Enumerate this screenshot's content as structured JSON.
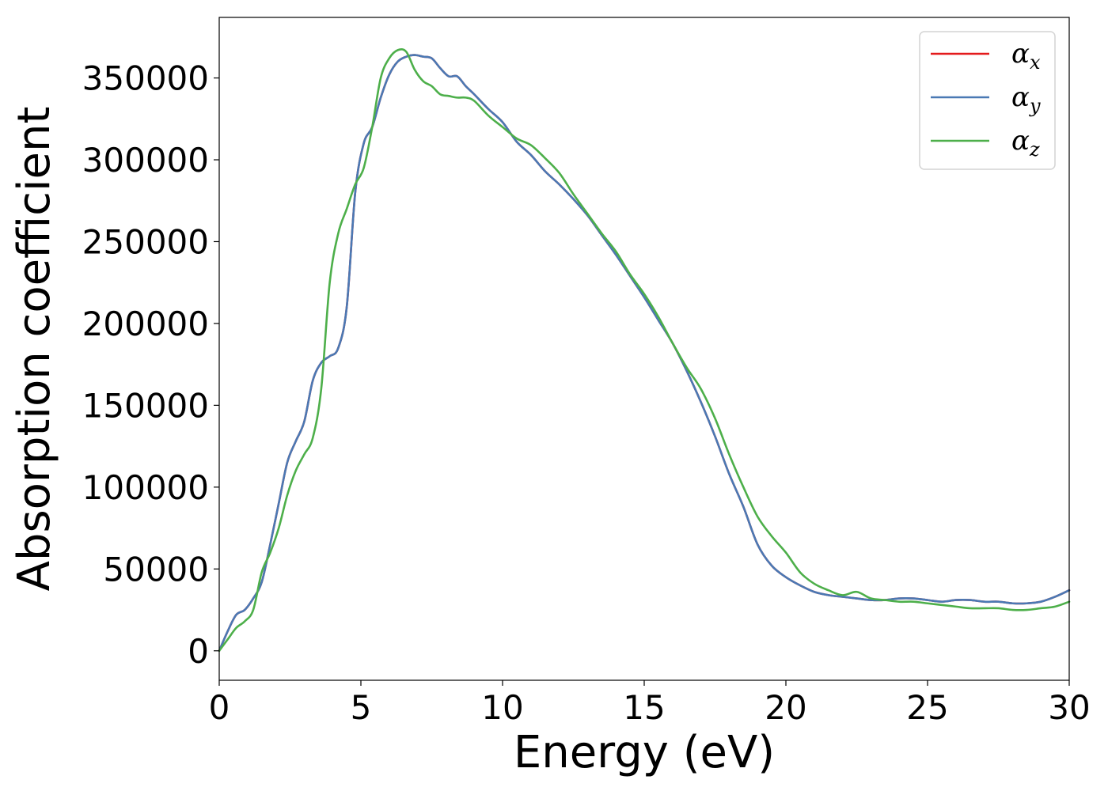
{
  "chart_data": {
    "type": "line",
    "title": "",
    "xlabel": "Energy (eV)",
    "ylabel": "Absorption coefficient",
    "xlim": [
      0,
      30
    ],
    "ylim": [
      -18000,
      387000
    ],
    "xticks": [
      0,
      5,
      10,
      15,
      20,
      25,
      30
    ],
    "xtick_labels": [
      "0",
      "5",
      "10",
      "15",
      "20",
      "25",
      "30"
    ],
    "yticks": [
      0,
      50000,
      100000,
      150000,
      200000,
      250000,
      300000,
      350000
    ],
    "ytick_labels": [
      "0",
      "50000",
      "100000",
      "150000",
      "200000",
      "250000",
      "300000",
      "350000"
    ],
    "grid": false,
    "legend_position": "top-right",
    "series": [
      {
        "name": "α",
        "subscript": "x",
        "color": "#e41a1c",
        "x": [
          0,
          0.3,
          0.6,
          0.9,
          1.2,
          1.5,
          1.8,
          2.1,
          2.4,
          2.7,
          3.0,
          3.3,
          3.6,
          3.9,
          4.2,
          4.5,
          4.8,
          5.1,
          5.4,
          5.7,
          6.0,
          6.3,
          6.6,
          6.9,
          7.2,
          7.5,
          7.8,
          8.1,
          8.4,
          8.7,
          9.0,
          9.5,
          10.0,
          10.5,
          11.0,
          11.5,
          12.0,
          12.5,
          13.0,
          13.5,
          14.0,
          14.5,
          15.0,
          15.5,
          16.0,
          16.5,
          17.0,
          17.5,
          18.0,
          18.5,
          19.0,
          19.5,
          20.0,
          20.5,
          21.0,
          21.5,
          22.0,
          22.5,
          23.0,
          23.5,
          24.0,
          24.5,
          25.0,
          25.5,
          26.0,
          26.5,
          27.0,
          27.5,
          28.0,
          28.5,
          29.0,
          29.5,
          30.0
        ],
        "y": [
          0,
          12000,
          22000,
          25000,
          32000,
          42000,
          65000,
          90000,
          115000,
          128000,
          140000,
          165000,
          176000,
          180000,
          185000,
          210000,
          280000,
          310000,
          320000,
          338000,
          352000,
          360000,
          363000,
          364000,
          363000,
          362000,
          356000,
          351000,
          351000,
          345000,
          340000,
          331000,
          323000,
          311000,
          303000,
          293000,
          285000,
          276000,
          266000,
          254000,
          242000,
          229000,
          216000,
          202000,
          188000,
          171000,
          152000,
          131000,
          108000,
          88000,
          65000,
          52000,
          45000,
          40000,
          36000,
          34000,
          33000,
          32000,
          31000,
          31000,
          32000,
          32000,
          31000,
          30000,
          31000,
          31000,
          30000,
          30000,
          29000,
          29000,
          30000,
          33000,
          37000
        ]
      },
      {
        "name": "α",
        "subscript": "y",
        "color": "#4a79b4",
        "x": [
          0,
          0.3,
          0.6,
          0.9,
          1.2,
          1.5,
          1.8,
          2.1,
          2.4,
          2.7,
          3.0,
          3.3,
          3.6,
          3.9,
          4.2,
          4.5,
          4.8,
          5.1,
          5.4,
          5.7,
          6.0,
          6.3,
          6.6,
          6.9,
          7.2,
          7.5,
          7.8,
          8.1,
          8.4,
          8.7,
          9.0,
          9.5,
          10.0,
          10.5,
          11.0,
          11.5,
          12.0,
          12.5,
          13.0,
          13.5,
          14.0,
          14.5,
          15.0,
          15.5,
          16.0,
          16.5,
          17.0,
          17.5,
          18.0,
          18.5,
          19.0,
          19.5,
          20.0,
          20.5,
          21.0,
          21.5,
          22.0,
          22.5,
          23.0,
          23.5,
          24.0,
          24.5,
          25.0,
          25.5,
          26.0,
          26.5,
          27.0,
          27.5,
          28.0,
          28.5,
          29.0,
          29.5,
          30.0
        ],
        "y": [
          0,
          12000,
          22000,
          25000,
          32000,
          42000,
          65000,
          90000,
          115000,
          128000,
          140000,
          165000,
          176000,
          180000,
          185000,
          210000,
          280000,
          310000,
          320000,
          338000,
          352000,
          360000,
          363000,
          364000,
          363000,
          362000,
          356000,
          351000,
          351000,
          345000,
          340000,
          331000,
          323000,
          311000,
          303000,
          293000,
          285000,
          276000,
          266000,
          254000,
          242000,
          229000,
          216000,
          202000,
          188000,
          171000,
          152000,
          131000,
          108000,
          88000,
          65000,
          52000,
          45000,
          40000,
          36000,
          34000,
          33000,
          32000,
          31000,
          31000,
          32000,
          32000,
          31000,
          30000,
          31000,
          31000,
          30000,
          30000,
          29000,
          29000,
          30000,
          33000,
          37000
        ]
      },
      {
        "name": "α",
        "subscript": "z",
        "color": "#4daf4a",
        "x": [
          0,
          0.3,
          0.6,
          0.9,
          1.2,
          1.5,
          1.8,
          2.1,
          2.4,
          2.7,
          3.0,
          3.3,
          3.6,
          3.9,
          4.2,
          4.5,
          4.8,
          5.1,
          5.4,
          5.7,
          6.0,
          6.3,
          6.6,
          6.9,
          7.2,
          7.5,
          7.8,
          8.1,
          8.4,
          8.7,
          9.0,
          9.5,
          10.0,
          10.5,
          11.0,
          11.5,
          12.0,
          12.5,
          13.0,
          13.5,
          14.0,
          14.5,
          15.0,
          15.5,
          16.0,
          16.5,
          17.0,
          17.5,
          18.0,
          18.5,
          19.0,
          19.5,
          20.0,
          20.5,
          21.0,
          21.5,
          22.0,
          22.5,
          23.0,
          23.5,
          24.0,
          24.5,
          25.0,
          25.5,
          26.0,
          26.5,
          27.0,
          27.5,
          28.0,
          28.5,
          29.0,
          29.5,
          30.0
        ],
        "y": [
          0,
          7000,
          14000,
          18000,
          25000,
          48000,
          60000,
          75000,
          95000,
          110000,
          120000,
          130000,
          160000,
          225000,
          255000,
          270000,
          285000,
          295000,
          320000,
          350000,
          362000,
          367000,
          366000,
          355000,
          348000,
          345000,
          340000,
          339000,
          338000,
          338000,
          336000,
          327000,
          320000,
          313000,
          309000,
          301000,
          292000,
          279000,
          267000,
          255000,
          244000,
          230000,
          218000,
          204000,
          188000,
          173000,
          160000,
          142000,
          120000,
          100000,
          82000,
          70000,
          60000,
          48000,
          41000,
          37000,
          34000,
          36000,
          32000,
          31000,
          30000,
          30000,
          29000,
          28000,
          27000,
          26000,
          26000,
          26000,
          25000,
          25000,
          26000,
          27000,
          30000
        ]
      }
    ]
  }
}
